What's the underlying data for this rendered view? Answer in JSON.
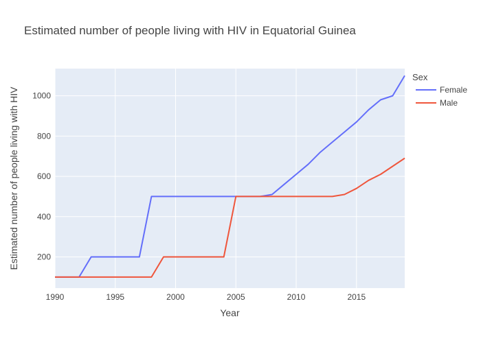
{
  "chart_data": {
    "type": "line",
    "title": "Estimated number of people living with HIV in Equatorial Guinea",
    "xlabel": "Year",
    "ylabel": "Estimated number of people living with HIV",
    "xlim": [
      1990,
      2019
    ],
    "ylim": [
      45,
      1135
    ],
    "x_ticks": [
      1990,
      1995,
      2000,
      2005,
      2010,
      2015
    ],
    "y_ticks": [
      200,
      400,
      600,
      800,
      1000
    ],
    "grid": true,
    "legend": {
      "title": "Sex",
      "placement": "top-right"
    },
    "x": [
      1990,
      1991,
      1992,
      1993,
      1994,
      1995,
      1996,
      1997,
      1998,
      1999,
      2000,
      2001,
      2002,
      2003,
      2004,
      2005,
      2006,
      2007,
      2008,
      2009,
      2010,
      2011,
      2012,
      2013,
      2014,
      2015,
      2016,
      2017,
      2018,
      2019
    ],
    "series": [
      {
        "name": "Female",
        "color": "#636efa",
        "values": [
          100,
          100,
          100,
          200,
          200,
          200,
          200,
          200,
          500,
          500,
          500,
          500,
          500,
          500,
          500,
          500,
          500,
          500,
          510,
          560,
          610,
          660,
          720,
          770,
          820,
          870,
          930,
          980,
          1000,
          1100
        ]
      },
      {
        "name": "Male",
        "color": "#ef553b",
        "values": [
          100,
          100,
          100,
          100,
          100,
          100,
          100,
          100,
          100,
          200,
          200,
          200,
          200,
          200,
          200,
          500,
          500,
          500,
          500,
          500,
          500,
          500,
          500,
          500,
          510,
          540,
          580,
          610,
          650,
          690
        ]
      }
    ]
  }
}
